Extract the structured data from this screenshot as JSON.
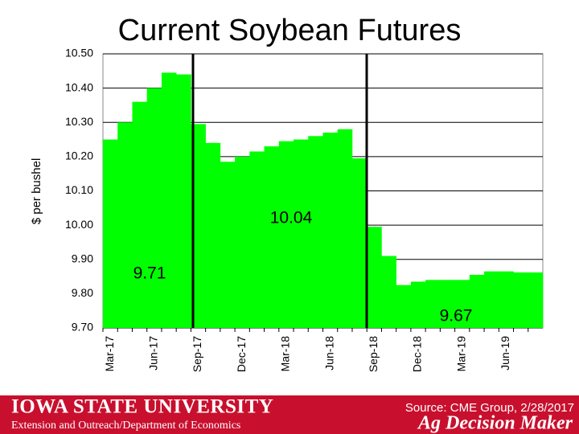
{
  "chart_data": {
    "type": "bar",
    "title": "Current Soybean Futures",
    "y_label": "$ per bushel",
    "categories": [
      "Mar-17",
      null,
      null,
      "Jun-17",
      null,
      null,
      "Sep-17",
      null,
      null,
      "Dec-17",
      null,
      null,
      "Mar-18",
      null,
      null,
      "Jun-18",
      null,
      null,
      "Sep-18",
      null,
      null,
      "Dec-18",
      null,
      null,
      "Mar-19",
      null,
      null,
      "Jun-19",
      null,
      null
    ],
    "values": [
      10.25,
      10.3,
      10.36,
      10.4,
      10.445,
      10.44,
      10.295,
      10.24,
      10.185,
      10.2,
      10.215,
      10.23,
      10.245,
      10.25,
      10.26,
      10.27,
      10.28,
      10.195,
      9.995,
      9.91,
      9.825,
      9.835,
      9.84,
      9.84,
      9.84,
      9.855,
      9.865,
      9.865,
      9.862,
      9.862
    ],
    "color": "#00ff00",
    "ylim": [
      9.7,
      10.5
    ],
    "yticks": [
      {
        "value": 9.7,
        "label": "9.70"
      },
      {
        "value": 9.8,
        "label": "9.80"
      },
      {
        "value": 9.9,
        "label": "9.90"
      },
      {
        "value": 10.0,
        "label": "10.00"
      },
      {
        "value": 10.1,
        "label": "10.10"
      },
      {
        "value": 10.2,
        "label": "10.20"
      },
      {
        "value": 10.3,
        "label": "10.30"
      },
      {
        "value": 10.4,
        "label": "10.40"
      },
      {
        "value": 10.5,
        "label": "10.50"
      }
    ],
    "grid": true,
    "annotations": [
      "9.71",
      "10.04",
      "9.67"
    ]
  },
  "footer": {
    "university": "Iowa State University",
    "department": "Extension and Outreach/Department of Economics",
    "source": "Source: CME Group, 2/28/2017",
    "brand": "Ag Decision Maker"
  }
}
